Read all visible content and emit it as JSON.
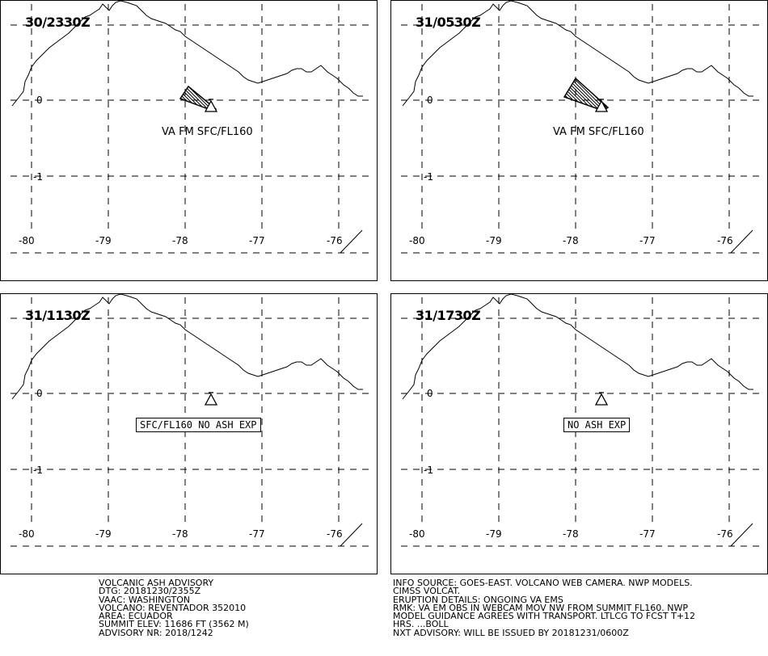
{
  "panels": [
    {
      "time": "30/2330Z",
      "lat_label": "0",
      "lat_label_2": "-1",
      "lon_labels": [
        "-80",
        "-79",
        "-78",
        "-77",
        "-76"
      ],
      "annotation": "VA FM SFC/FL160",
      "annotation_style": "plain",
      "ash_cloud": "small"
    },
    {
      "time": "31/0530Z",
      "lat_label": "0",
      "lat_label_2": "-1",
      "lon_labels": [
        "-80",
        "-79",
        "-78",
        "-77",
        "-76"
      ],
      "annotation": "VA FM SFC/FL160",
      "annotation_style": "plain",
      "ash_cloud": "large"
    },
    {
      "time": "31/1130Z",
      "lat_label": "0",
      "lat_label_2": "-1",
      "lon_labels": [
        "-80",
        "-79",
        "-78",
        "-77",
        "-76"
      ],
      "annotation": "SFC/FL160 NO ASH EXP",
      "annotation_style": "boxed",
      "ash_cloud": "none"
    },
    {
      "time": "31/1730Z",
      "lat_label": "0",
      "lat_label_2": "-1",
      "lon_labels": [
        "-80",
        "-79",
        "-78",
        "-77",
        "-76"
      ],
      "annotation": "NO ASH EXP",
      "annotation_style": "boxed",
      "ash_cloud": "none"
    }
  ],
  "advisory_left": [
    "VOLCANIC ASH ADVISORY",
    "DTG: 20181230/2355Z",
    "VAAC: WASHINGTON",
    "VOLCANO: REVENTADOR 352010",
    "AREA: ECUADOR",
    "SUMMIT ELEV: 11686 FT (3562 M)",
    "ADVISORY NR: 2018/1242"
  ],
  "advisory_right": [
    "INFO SOURCE: GOES-EAST. VOLCANO WEB CAMERA. NWP MODELS.",
    "CIMSS VOLCAT.",
    "ERUPTION DETAILS: ONGOING VA EMS",
    "RMK: VA EM OBS IN WEBCAM MOV NW FROM SUMMIT FL160. NWP",
    "MODEL GUIDANCE AGREES WITH TRANSPORT. LTLCG TO FCST T+12",
    "HRS. ...BOLL",
    "NXT ADVISORY: WILL BE ISSUED BY 20181231/0600Z"
  ],
  "colors": {
    "line": "#000000",
    "background": "#ffffff"
  },
  "icons": {
    "volcano": "volcano-triangle-icon",
    "ash": "hatched-ash-area"
  }
}
